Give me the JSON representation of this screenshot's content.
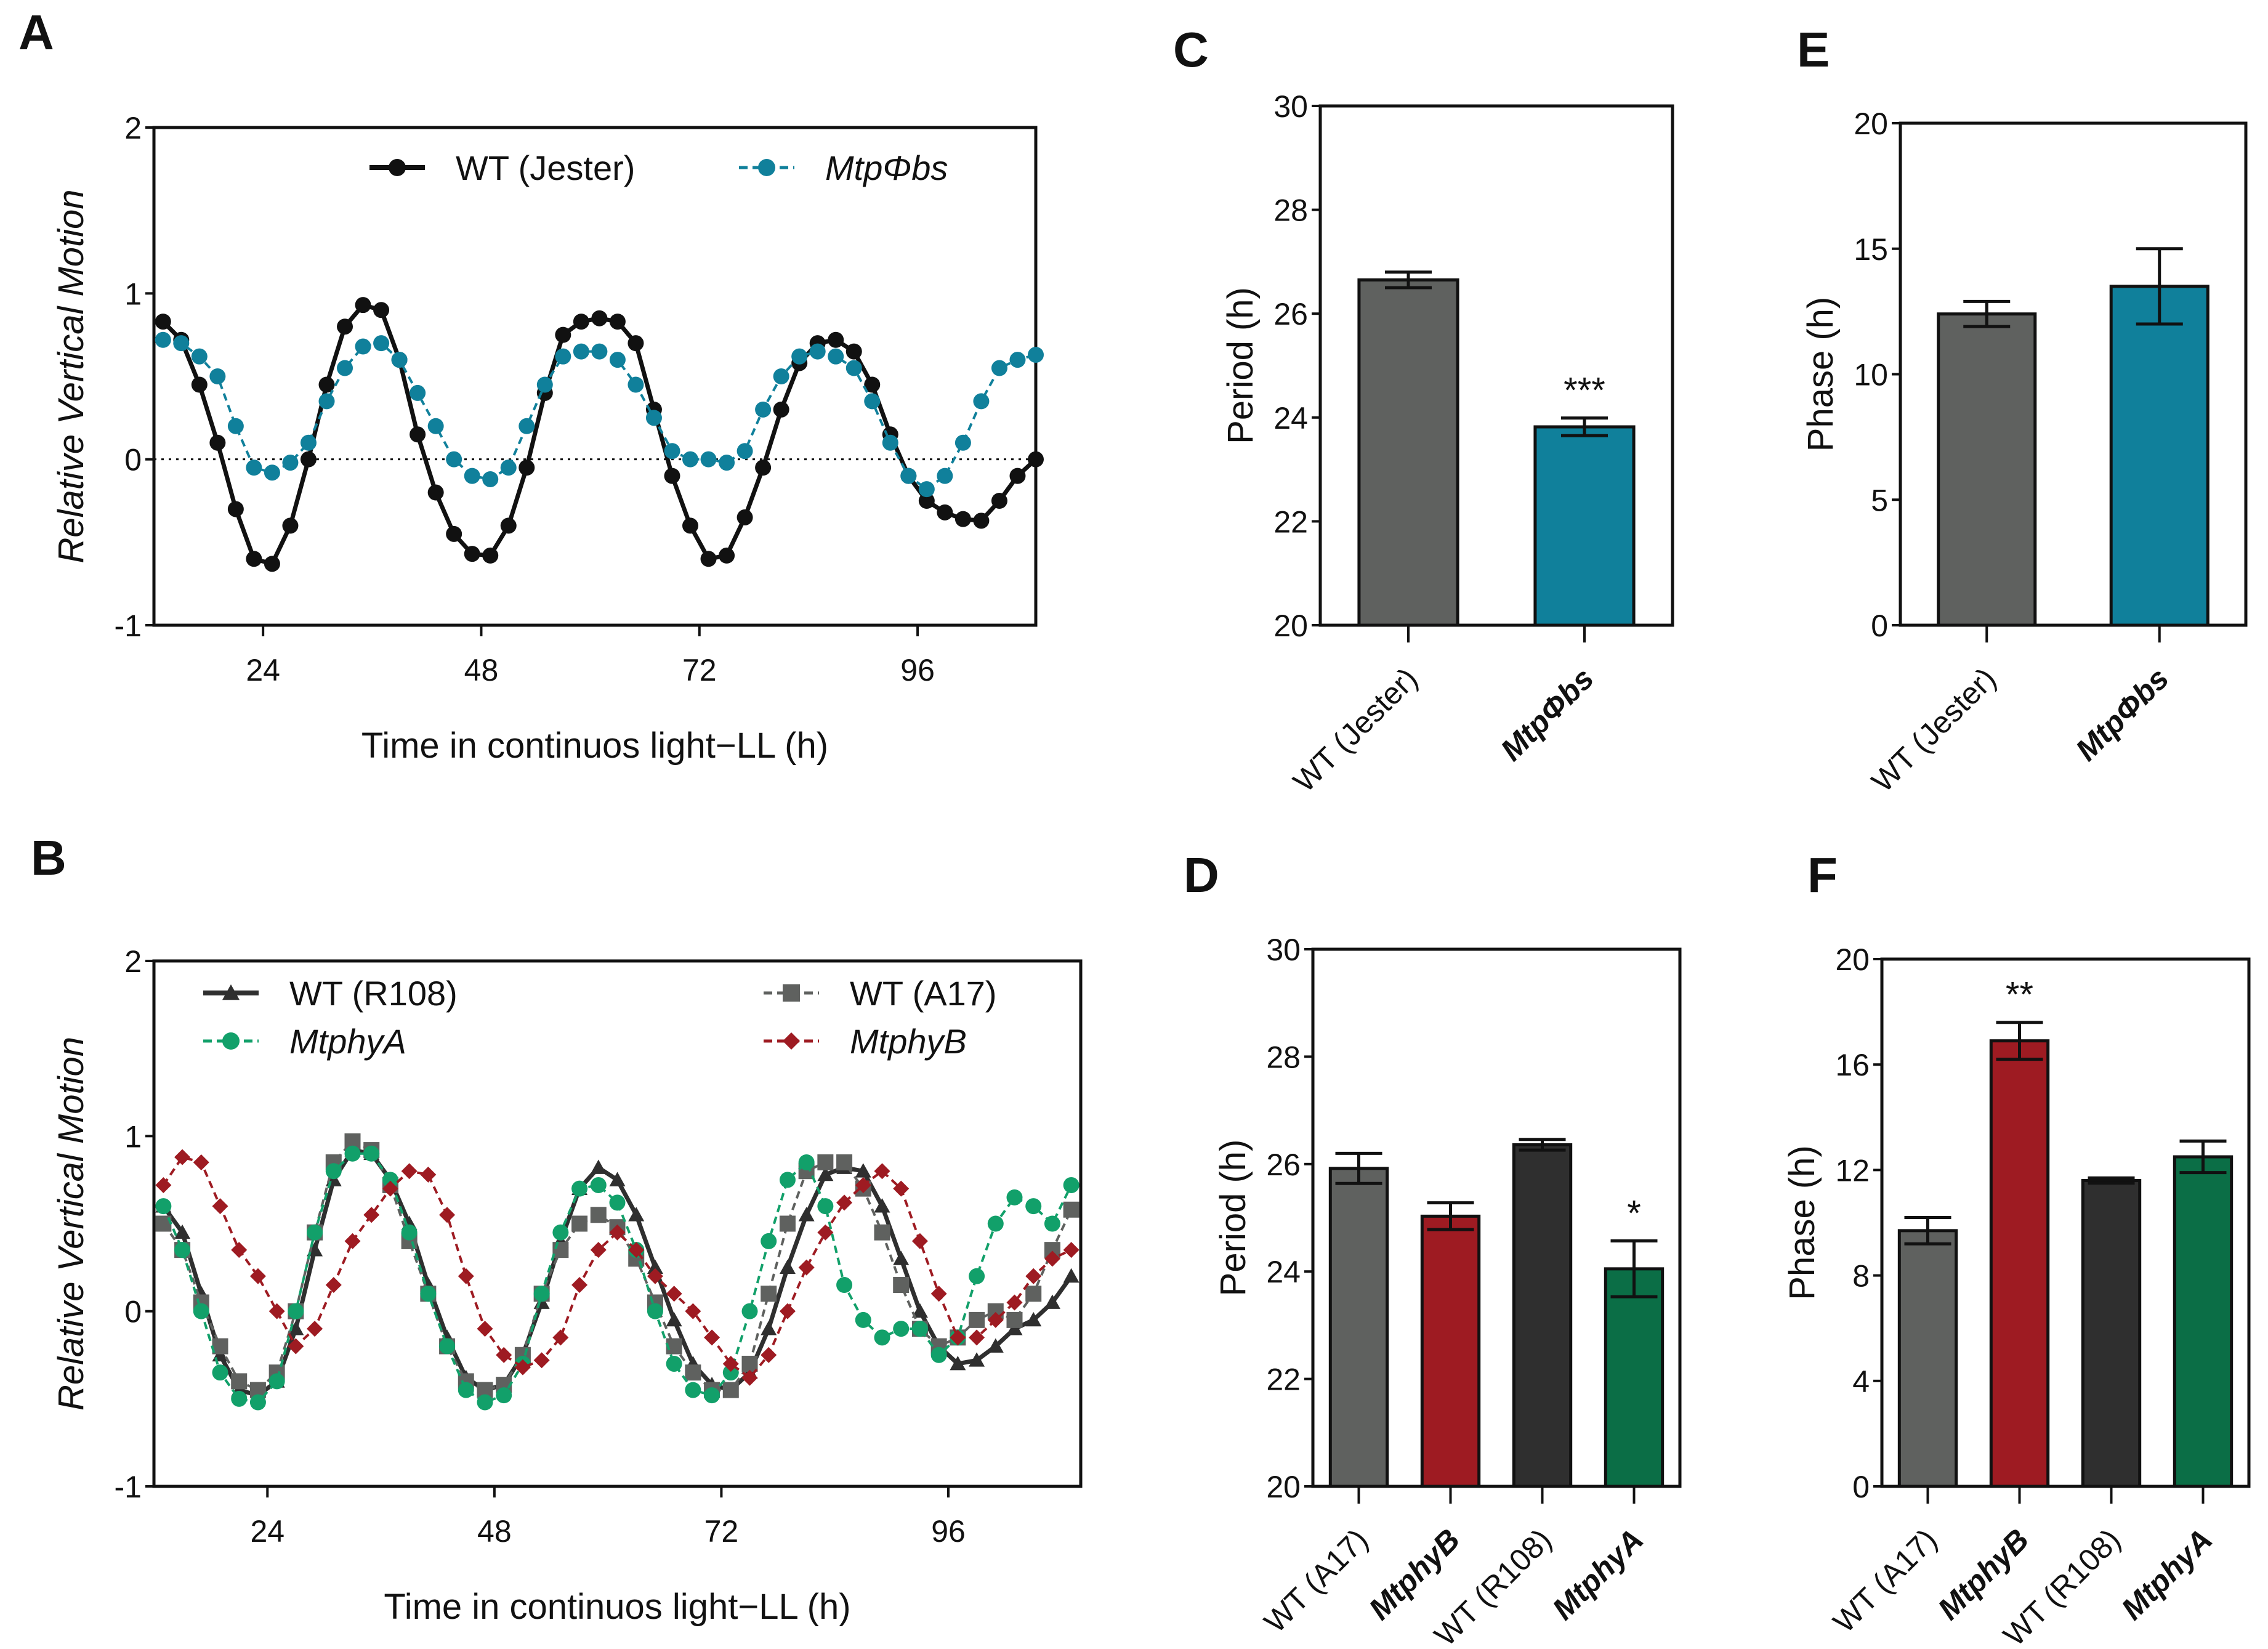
{
  "colors": {
    "black": "#111111",
    "teal": "#10809b",
    "grey": "#5f615f",
    "dark": "#2f2f2f",
    "red": "#9e1b22",
    "green": "#0b6e46",
    "lightgrey": "#8a8a8a"
  },
  "chart_data": [
    {
      "id": "A",
      "panel_label": "A",
      "type": "line",
      "ylabel": "Relative Vertical Motion",
      "xlabel": "Time in continuos light−LL (h)",
      "xlim": [
        12,
        109
      ],
      "ylim": [
        -1,
        2
      ],
      "xticks": [
        24,
        48,
        72,
        96
      ],
      "yticks": [
        -1,
        0,
        1,
        2
      ],
      "zero_line": "dotted",
      "legend_placement": "top",
      "x": [
        13,
        15,
        17,
        19,
        21,
        23,
        25,
        27,
        29,
        31,
        33,
        35,
        37,
        39,
        41,
        43,
        45,
        47,
        49,
        51,
        53,
        55,
        57,
        59,
        61,
        63,
        65,
        67,
        69,
        71,
        73,
        75,
        77,
        79,
        81,
        83,
        85,
        87,
        89,
        91,
        93,
        95,
        97,
        99,
        101,
        103,
        105,
        107,
        109
      ],
      "series": [
        {
          "name": "WT (Jester)",
          "italic": false,
          "color": "#111111",
          "marker": "circle",
          "dash": false,
          "values": [
            0.83,
            0.72,
            0.45,
            0.1,
            -0.3,
            -0.6,
            -0.63,
            -0.4,
            0.0,
            0.45,
            0.8,
            0.93,
            0.9,
            0.6,
            0.15,
            -0.2,
            -0.45,
            -0.57,
            -0.58,
            -0.4,
            -0.05,
            0.4,
            0.75,
            0.83,
            0.85,
            0.83,
            0.7,
            0.3,
            -0.1,
            -0.4,
            -0.6,
            -0.58,
            -0.35,
            -0.05,
            0.3,
            0.58,
            0.7,
            0.72,
            0.65,
            0.45,
            0.15,
            -0.1,
            -0.25,
            -0.32,
            -0.36,
            -0.37,
            -0.25,
            -0.1,
            0.0
          ]
        },
        {
          "name": "MtpΦbs",
          "italic": true,
          "color": "#10809b",
          "marker": "circle",
          "dash": true,
          "values": [
            0.72,
            0.7,
            0.62,
            0.5,
            0.2,
            -0.05,
            -0.08,
            -0.02,
            0.1,
            0.35,
            0.55,
            0.68,
            0.7,
            0.6,
            0.4,
            0.2,
            0.0,
            -0.1,
            -0.12,
            -0.05,
            0.2,
            0.45,
            0.62,
            0.65,
            0.65,
            0.6,
            0.45,
            0.25,
            0.05,
            0.0,
            0.0,
            -0.02,
            0.05,
            0.3,
            0.5,
            0.62,
            0.65,
            0.62,
            0.55,
            0.35,
            0.1,
            -0.1,
            -0.18,
            -0.1,
            0.1,
            0.35,
            0.55,
            0.6,
            0.63
          ]
        }
      ]
    },
    {
      "id": "B",
      "panel_label": "B",
      "type": "line",
      "ylabel": "Relative Vertical Motion",
      "xlabel": "Time in continuos light−LL (h)",
      "xlim": [
        12,
        110
      ],
      "ylim": [
        -1,
        2
      ],
      "xticks": [
        24,
        48,
        72,
        96
      ],
      "yticks": [
        -1,
        0,
        1,
        2
      ],
      "legend_placement": "top",
      "x": [
        13,
        15,
        17,
        19,
        21,
        23,
        25,
        27,
        29,
        31,
        33,
        35,
        37,
        39,
        41,
        43,
        45,
        47,
        49,
        51,
        53,
        55,
        57,
        59,
        61,
        63,
        65,
        67,
        69,
        71,
        73,
        75,
        77,
        79,
        81,
        83,
        85,
        87,
        89,
        91,
        93,
        95,
        97,
        99,
        101,
        103,
        105,
        107,
        109
      ],
      "series": [
        {
          "name": "WT (R108)",
          "italic": false,
          "color": "#2f2f2f",
          "marker": "triangle",
          "dash": false,
          "values": [
            0.6,
            0.45,
            0.1,
            -0.25,
            -0.45,
            -0.48,
            -0.4,
            -0.1,
            0.35,
            0.75,
            0.92,
            0.9,
            0.75,
            0.5,
            0.15,
            -0.15,
            -0.38,
            -0.45,
            -0.42,
            -0.25,
            0.05,
            0.4,
            0.7,
            0.82,
            0.75,
            0.55,
            0.25,
            -0.05,
            -0.3,
            -0.42,
            -0.45,
            -0.35,
            -0.1,
            0.25,
            0.55,
            0.78,
            0.82,
            0.8,
            0.6,
            0.3,
            0.0,
            -0.2,
            -0.3,
            -0.28,
            -0.2,
            -0.1,
            -0.05,
            0.05,
            0.2
          ]
        },
        {
          "name": "WT (A17)",
          "italic": false,
          "color": "#5f615f",
          "marker": "square",
          "dash": true,
          "values": [
            0.5,
            0.35,
            0.05,
            -0.2,
            -0.4,
            -0.45,
            -0.35,
            0.0,
            0.45,
            0.85,
            0.97,
            0.92,
            0.72,
            0.4,
            0.1,
            -0.2,
            -0.4,
            -0.45,
            -0.42,
            -0.25,
            0.1,
            0.35,
            0.5,
            0.55,
            0.48,
            0.3,
            0.05,
            -0.2,
            -0.35,
            -0.45,
            -0.45,
            -0.3,
            0.1,
            0.5,
            0.8,
            0.85,
            0.85,
            0.7,
            0.45,
            0.15,
            -0.1,
            -0.2,
            -0.15,
            -0.05,
            0.0,
            -0.05,
            0.1,
            0.35,
            0.58
          ]
        },
        {
          "name": "MtphyA",
          "italic": true,
          "color": "#12a06a",
          "marker": "circle",
          "dash": true,
          "values": [
            0.6,
            0.35,
            0.0,
            -0.35,
            -0.5,
            -0.52,
            -0.4,
            0.0,
            0.45,
            0.8,
            0.9,
            0.9,
            0.75,
            0.45,
            0.1,
            -0.2,
            -0.45,
            -0.52,
            -0.48,
            -0.3,
            0.1,
            0.45,
            0.7,
            0.72,
            0.62,
            0.35,
            0.0,
            -0.3,
            -0.45,
            -0.48,
            -0.35,
            0.0,
            0.4,
            0.75,
            0.85,
            0.6,
            0.15,
            -0.05,
            -0.15,
            -0.1,
            -0.1,
            -0.25,
            -0.15,
            0.2,
            0.5,
            0.65,
            0.6,
            0.5,
            0.72
          ]
        },
        {
          "name": "MtphyB",
          "italic": true,
          "color": "#9e1b22",
          "marker": "diamond",
          "dash": true,
          "values": [
            0.72,
            0.88,
            0.85,
            0.6,
            0.35,
            0.2,
            0.0,
            -0.2,
            -0.1,
            0.15,
            0.4,
            0.55,
            0.7,
            0.8,
            0.78,
            0.55,
            0.2,
            -0.1,
            -0.25,
            -0.32,
            -0.28,
            -0.15,
            0.15,
            0.35,
            0.45,
            0.35,
            0.2,
            0.1,
            0.0,
            -0.15,
            -0.3,
            -0.38,
            -0.25,
            0.0,
            0.25,
            0.45,
            0.62,
            0.72,
            0.8,
            0.7,
            0.4,
            0.1,
            -0.15,
            -0.15,
            -0.05,
            0.05,
            0.2,
            0.3,
            0.35
          ]
        }
      ]
    },
    {
      "id": "C",
      "panel_label": "C",
      "type": "bar",
      "ylabel": "Period (h)",
      "ylim": [
        20,
        30
      ],
      "yticks": [
        20,
        22,
        24,
        26,
        28,
        30
      ],
      "categories": [
        {
          "label": "WT (Jester)",
          "italic": false
        },
        {
          "label": "MtpΦbs",
          "italic": true
        }
      ],
      "values": [
        26.65,
        23.82
      ],
      "errors": [
        0.15,
        0.17
      ],
      "colors": [
        "#5f615f",
        "#10809b"
      ],
      "significance": [
        "",
        "***"
      ]
    },
    {
      "id": "E",
      "panel_label": "E",
      "type": "bar",
      "ylabel": "Phase (h)",
      "ylim": [
        0,
        20
      ],
      "yticks": [
        0,
        5,
        10,
        15,
        20
      ],
      "categories": [
        {
          "label": "WT (Jester)",
          "italic": false
        },
        {
          "label": "MtpΦbs",
          "italic": true
        }
      ],
      "values": [
        12.4,
        13.5
      ],
      "errors": [
        0.5,
        1.5
      ],
      "colors": [
        "#5f615f",
        "#10809b"
      ],
      "significance": [
        "",
        ""
      ]
    },
    {
      "id": "D",
      "panel_label": "D",
      "type": "bar",
      "ylabel": "Period (h)",
      "ylim": [
        20,
        30
      ],
      "yticks": [
        20,
        22,
        24,
        26,
        28,
        30
      ],
      "categories": [
        {
          "label": "WT (A17)",
          "italic": false
        },
        {
          "label": "MtphyB",
          "italic": true
        },
        {
          "label": "WT (R108)",
          "italic": false
        },
        {
          "label": "MtphyA",
          "italic": true
        }
      ],
      "values": [
        25.92,
        25.03,
        26.36,
        24.05
      ],
      "errors": [
        0.28,
        0.25,
        0.1,
        0.52
      ],
      "colors": [
        "#5f615f",
        "#9e1b22",
        "#2f2f2f",
        "#0b6e46"
      ],
      "significance": [
        "",
        "",
        "",
        "*"
      ]
    },
    {
      "id": "F",
      "panel_label": "F",
      "type": "bar",
      "ylabel": "Phase (h)",
      "ylim": [
        0,
        20
      ],
      "yticks": [
        0,
        4,
        8,
        12,
        16,
        20
      ],
      "categories": [
        {
          "label": "WT (A17)",
          "italic": false
        },
        {
          "label": "MtphyB",
          "italic": true
        },
        {
          "label": "WT (R108)",
          "italic": false
        },
        {
          "label": "MtphyA",
          "italic": true
        }
      ],
      "values": [
        9.7,
        16.9,
        11.6,
        12.5
      ],
      "errors": [
        0.5,
        0.7,
        0.1,
        0.6
      ],
      "colors": [
        "#5f615f",
        "#9e1b22",
        "#2f2f2f",
        "#0b6e46"
      ],
      "significance": [
        "",
        "**",
        "",
        ""
      ]
    }
  ]
}
